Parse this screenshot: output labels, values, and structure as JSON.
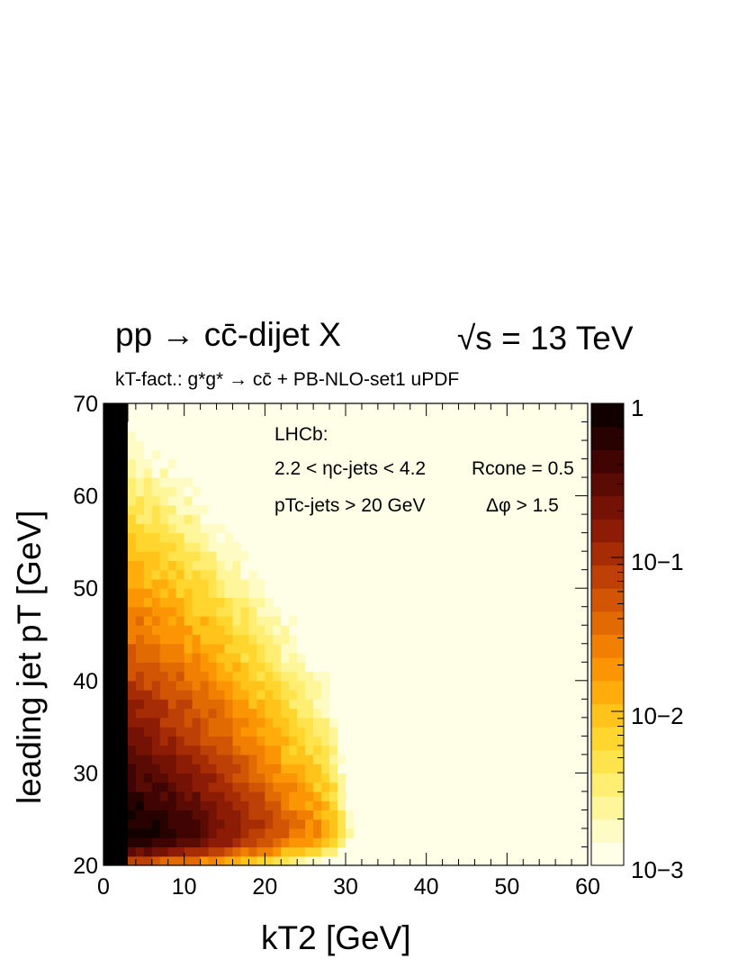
{
  "chart_data": {
    "type": "heatmap",
    "title": {
      "process": "pp → cc̄-dijet X",
      "energy": "√s = 13 TeV"
    },
    "subtitle": "kT-fact.: g*g* → cc̄ + PB-NLO-set1 uPDF",
    "xlabel": "kT2   [GeV]",
    "ylabel": "leading jet pT   [GeV]",
    "xlim": [
      0,
      60
    ],
    "ylim": [
      20,
      70
    ],
    "x_ticks": [
      "0",
      "10",
      "20",
      "30",
      "40",
      "50",
      "60"
    ],
    "y_ticks": [
      "20",
      "30",
      "40",
      "50",
      "60",
      "70"
    ],
    "z_scale": "log",
    "zlim": [
      0.001,
      1
    ],
    "z_ticks": [
      "1",
      "10−1",
      "10−2",
      "10−3"
    ],
    "annotations": {
      "experiment": "LHCb:",
      "eta_cut": "2.2 < ηc-jets < 4.2",
      "rcone": "Rcone = 0.5",
      "pt_cut": "pTc-jets > 20 GeV",
      "dphi": "Δφ > 1.5"
    },
    "peak": {
      "x": 3,
      "y": 24,
      "z": 1.0
    },
    "palette": [
      "#ffffe8",
      "#fffbc4",
      "#fff59a",
      "#ffee72",
      "#ffe34c",
      "#ffd52e",
      "#ffc31a",
      "#ffac0c",
      "#fb9504",
      "#f07f02",
      "#e26a02",
      "#d15504",
      "#bd4006",
      "#a62c06",
      "#8c1c05",
      "#731205",
      "#5a0b04",
      "#400503",
      "#280201",
      "#120000"
    ]
  }
}
